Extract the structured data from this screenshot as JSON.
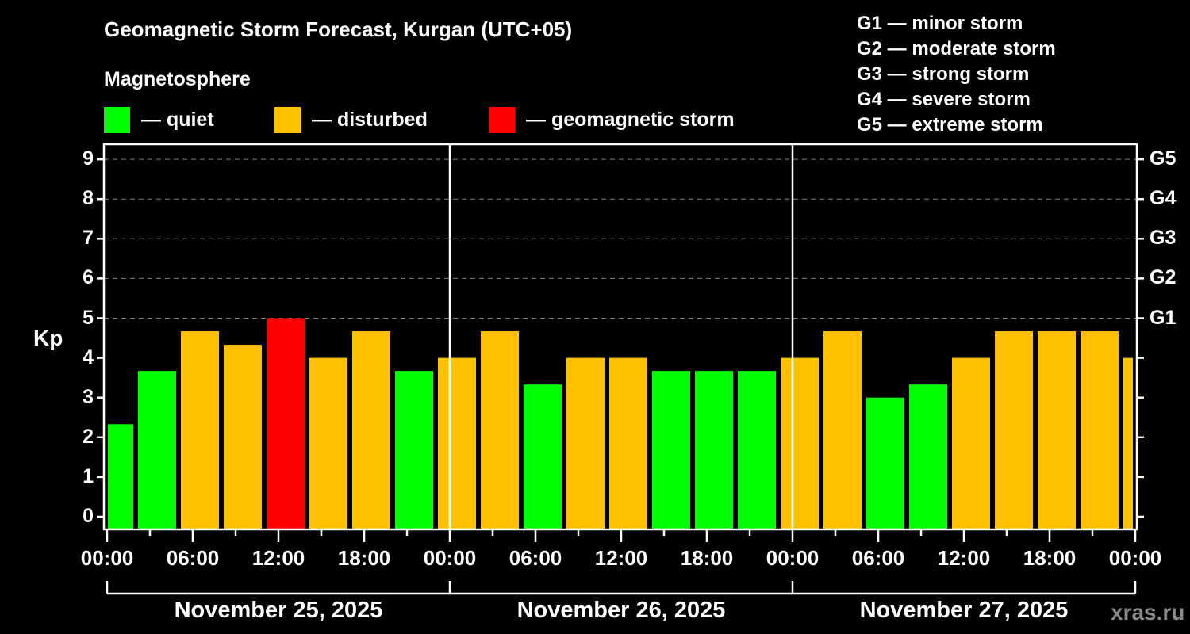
{
  "title": "Geomagnetic Storm Forecast, Kurgan (UTC+05)",
  "subtitle": "Magnetosphere",
  "legend": [
    {
      "label": "— quiet",
      "color": "#00ff00"
    },
    {
      "label": "— disturbed",
      "color": "#ffc000"
    },
    {
      "label": "— geomagnetic storm",
      "color": "#ff0000"
    }
  ],
  "g_scale_legend": [
    "G1 — minor storm",
    "G2 — moderate storm",
    "G3 — strong storm",
    "G4 — severe storm",
    "G5 — extreme storm"
  ],
  "axis": {
    "ylabel": "Kp",
    "yticks": [
      "0",
      "1",
      "2",
      "3",
      "4",
      "5",
      "6",
      "7",
      "8",
      "9"
    ],
    "g_ticks": [
      {
        "level": 5,
        "label": "G1"
      },
      {
        "level": 6,
        "label": "G2"
      },
      {
        "level": 7,
        "label": "G3"
      },
      {
        "level": 8,
        "label": "G4"
      },
      {
        "level": 9,
        "label": "G5"
      }
    ],
    "xticks": [
      "00:00",
      "06:00",
      "12:00",
      "18:00",
      "00:00",
      "06:00",
      "12:00",
      "18:00",
      "00:00",
      "06:00",
      "12:00",
      "18:00",
      "00:00"
    ],
    "dates": [
      "November 25, 2025",
      "November 26, 2025",
      "November 27, 2025"
    ]
  },
  "watermark": "xras.ru",
  "colors": {
    "quiet": "#00ff00",
    "disturbed": "#ffc000",
    "storm": "#ff0000",
    "background": "#000000",
    "grid": "#808080",
    "watermark": "#8a8a8a"
  },
  "chart_data": {
    "type": "bar",
    "title": "Geomagnetic Storm Forecast, Kurgan (UTC+05)",
    "xlabel": "",
    "ylabel": "Kp",
    "ylim": [
      0,
      9
    ],
    "grid": true,
    "legend_position": "top",
    "intervals_start_hours_local": [
      0,
      2,
      5,
      8,
      11,
      14,
      17,
      20,
      23,
      26,
      29,
      32,
      35,
      38,
      41,
      44,
      47,
      50,
      53,
      56,
      59,
      62,
      65,
      68,
      71
    ],
    "intervals_end_hours_local": [
      2,
      5,
      8,
      11,
      14,
      17,
      20,
      23,
      26,
      29,
      32,
      35,
      38,
      41,
      44,
      47,
      50,
      53,
      56,
      59,
      62,
      65,
      68,
      71,
      72
    ],
    "categories": [
      "Nov 25 00:00-02:00",
      "Nov 25 02:00-05:00",
      "Nov 25 05:00-08:00",
      "Nov 25 08:00-11:00",
      "Nov 25 11:00-14:00",
      "Nov 25 14:00-17:00",
      "Nov 25 17:00-20:00",
      "Nov 25 20:00-23:00",
      "Nov 25 23:00-Nov 26 02:00",
      "Nov 26 02:00-05:00",
      "Nov 26 05:00-08:00",
      "Nov 26 08:00-11:00",
      "Nov 26 11:00-14:00",
      "Nov 26 14:00-17:00",
      "Nov 26 17:00-20:00",
      "Nov 26 20:00-23:00",
      "Nov 26 23:00-Nov 27 02:00",
      "Nov 27 02:00-05:00",
      "Nov 27 05:00-08:00",
      "Nov 27 08:00-11:00",
      "Nov 27 11:00-14:00",
      "Nov 27 14:00-17:00",
      "Nov 27 17:00-20:00",
      "Nov 27 20:00-23:00",
      "Nov 27 23:00-24:00"
    ],
    "values": [
      2.33,
      3.67,
      4.67,
      4.33,
      5.0,
      4.0,
      4.67,
      3.67,
      4.0,
      4.67,
      3.33,
      4.0,
      4.0,
      3.67,
      3.67,
      3.67,
      4.0,
      4.67,
      3.0,
      3.33,
      4.0,
      4.67,
      4.67,
      4.67,
      4.0
    ],
    "status": [
      "quiet",
      "quiet",
      "disturbed",
      "disturbed",
      "storm",
      "disturbed",
      "disturbed",
      "quiet",
      "disturbed",
      "disturbed",
      "quiet",
      "disturbed",
      "disturbed",
      "quiet",
      "quiet",
      "quiet",
      "disturbed",
      "disturbed",
      "quiet",
      "quiet",
      "disturbed",
      "disturbed",
      "disturbed",
      "disturbed",
      "disturbed"
    ],
    "secondary_axis": {
      "G1": 5,
      "G2": 6,
      "G3": 7,
      "G4": 8,
      "G5": 9
    }
  }
}
